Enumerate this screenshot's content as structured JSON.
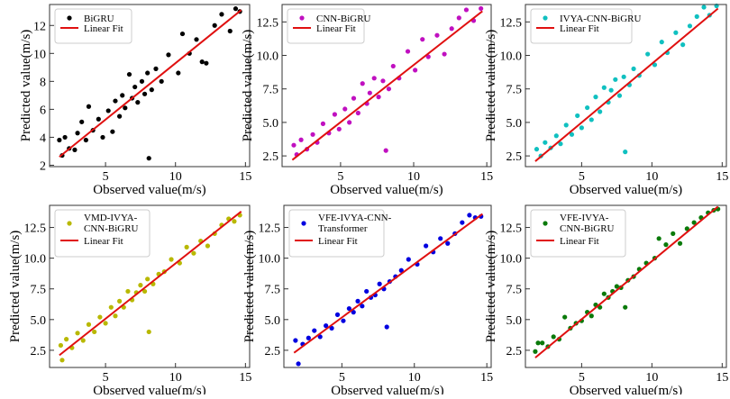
{
  "chart_data": [
    {
      "type": "scatter",
      "legend": [
        "BiGRU",
        "Linear Fit"
      ],
      "legend_position": "top-left",
      "xlabel": "Observed value(m/s)",
      "ylabel": "Predicted value(m/s)",
      "xlim": [
        1,
        15.3
      ],
      "ylim": [
        1.9,
        13.5
      ],
      "xticks": [
        5,
        10,
        15
      ],
      "yticks": [
        2,
        4,
        6,
        8,
        10,
        12
      ],
      "ytick_labels": [
        "2",
        "4",
        "6",
        "8",
        "10",
        "12"
      ],
      "color": "#000000",
      "fit_line": [
        [
          1.7,
          2.6
        ],
        [
          14.7,
          13.1
        ]
      ],
      "points": [
        [
          1.7,
          3.8
        ],
        [
          1.9,
          2.7
        ],
        [
          2.1,
          4.0
        ],
        [
          2.4,
          3.2
        ],
        [
          2.8,
          3.1
        ],
        [
          3.0,
          4.3
        ],
        [
          3.3,
          5.1
        ],
        [
          3.6,
          3.8
        ],
        [
          3.8,
          6.2
        ],
        [
          4.1,
          4.5
        ],
        [
          4.5,
          5.3
        ],
        [
          4.8,
          4.0
        ],
        [
          5.2,
          5.9
        ],
        [
          5.5,
          4.4
        ],
        [
          5.7,
          6.6
        ],
        [
          6.0,
          5.5
        ],
        [
          6.2,
          7.0
        ],
        [
          6.4,
          6.1
        ],
        [
          6.7,
          8.5
        ],
        [
          6.9,
          6.8
        ],
        [
          7.1,
          7.6
        ],
        [
          7.3,
          6.5
        ],
        [
          7.6,
          8.0
        ],
        [
          7.8,
          7.1
        ],
        [
          8.0,
          8.6
        ],
        [
          8.1,
          2.5
        ],
        [
          8.3,
          7.4
        ],
        [
          8.6,
          8.9
        ],
        [
          9.0,
          8.0
        ],
        [
          9.5,
          9.9
        ],
        [
          10.2,
          8.6
        ],
        [
          10.5,
          11.4
        ],
        [
          11.0,
          10.0
        ],
        [
          11.5,
          11.0
        ],
        [
          11.9,
          9.4
        ],
        [
          12.2,
          9.3
        ],
        [
          12.8,
          12.0
        ],
        [
          13.3,
          12.8
        ],
        [
          13.9,
          11.6
        ],
        [
          14.3,
          13.2
        ],
        [
          14.6,
          13.0
        ]
      ]
    },
    {
      "type": "scatter",
      "legend": [
        "CNN-BiGRU",
        "Linear Fit"
      ],
      "legend_position": "top-left",
      "xlabel": "Observed value(m/s)",
      "ylabel": "Predicted value(m/s)",
      "xlim": [
        1,
        15.3
      ],
      "ylim": [
        1.7,
        13.8
      ],
      "xticks": [
        5,
        10,
        15
      ],
      "yticks": [
        2.5,
        5,
        7.5,
        10,
        12.5
      ],
      "ytick_labels": [
        "2.5",
        "5.0",
        "7.5",
        "10.0",
        "12.5"
      ],
      "color": "#c010c0",
      "fit_line": [
        [
          1.7,
          2.2
        ],
        [
          14.7,
          13.3
        ]
      ],
      "points": [
        [
          1.8,
          3.3
        ],
        [
          2.0,
          2.6
        ],
        [
          2.3,
          3.7
        ],
        [
          2.7,
          3.0
        ],
        [
          3.1,
          4.1
        ],
        [
          3.4,
          3.5
        ],
        [
          3.8,
          4.9
        ],
        [
          4.2,
          4.2
        ],
        [
          4.6,
          5.6
        ],
        [
          4.9,
          4.5
        ],
        [
          5.3,
          6.0
        ],
        [
          5.6,
          5.0
        ],
        [
          5.9,
          6.8
        ],
        [
          6.2,
          5.7
        ],
        [
          6.5,
          7.9
        ],
        [
          6.8,
          6.4
        ],
        [
          7.0,
          7.2
        ],
        [
          7.3,
          8.3
        ],
        [
          7.6,
          6.9
        ],
        [
          7.9,
          8.1
        ],
        [
          8.1,
          2.9
        ],
        [
          8.3,
          7.5
        ],
        [
          8.6,
          9.2
        ],
        [
          9.0,
          8.3
        ],
        [
          9.6,
          10.3
        ],
        [
          10.1,
          8.9
        ],
        [
          10.6,
          11.2
        ],
        [
          11.0,
          9.9
        ],
        [
          11.6,
          11.5
        ],
        [
          12.1,
          10.1
        ],
        [
          12.6,
          12.0
        ],
        [
          13.1,
          12.8
        ],
        [
          13.6,
          13.4
        ],
        [
          14.1,
          12.6
        ],
        [
          14.6,
          13.5
        ]
      ]
    },
    {
      "type": "scatter",
      "legend": [
        "IVYA-CNN-BiGRU",
        "Linear Fit"
      ],
      "legend_position": "top-left",
      "xlabel": "Observed value(m/s)",
      "ylabel": "Predicted value(m/s)",
      "xlim": [
        1,
        15.3
      ],
      "ylim": [
        1.7,
        13.8
      ],
      "xticks": [
        5,
        10,
        15
      ],
      "yticks": [
        2.5,
        5,
        7.5,
        10,
        12.5
      ],
      "ytick_labels": [
        "2.5",
        "5.0",
        "7.5",
        "10.0",
        "12.5"
      ],
      "color": "#10c0c0",
      "fit_line": [
        [
          1.7,
          2.1
        ],
        [
          14.7,
          13.5
        ]
      ],
      "points": [
        [
          1.8,
          3.0
        ],
        [
          2.1,
          2.5
        ],
        [
          2.4,
          3.5
        ],
        [
          2.8,
          3.1
        ],
        [
          3.2,
          4.0
        ],
        [
          3.5,
          3.4
        ],
        [
          3.9,
          4.8
        ],
        [
          4.3,
          4.1
        ],
        [
          4.7,
          5.5
        ],
        [
          5.0,
          4.6
        ],
        [
          5.4,
          6.1
        ],
        [
          5.7,
          5.2
        ],
        [
          6.0,
          6.9
        ],
        [
          6.3,
          5.8
        ],
        [
          6.6,
          7.6
        ],
        [
          6.9,
          6.5
        ],
        [
          7.1,
          7.4
        ],
        [
          7.4,
          8.2
        ],
        [
          7.7,
          7.0
        ],
        [
          8.0,
          8.4
        ],
        [
          8.1,
          2.8
        ],
        [
          8.4,
          7.8
        ],
        [
          8.7,
          9.0
        ],
        [
          9.1,
          8.5
        ],
        [
          9.7,
          10.1
        ],
        [
          10.2,
          9.3
        ],
        [
          10.7,
          11.0
        ],
        [
          11.1,
          10.2
        ],
        [
          11.7,
          11.7
        ],
        [
          12.2,
          10.8
        ],
        [
          12.7,
          12.2
        ],
        [
          13.2,
          12.9
        ],
        [
          13.7,
          13.6
        ],
        [
          14.1,
          13.0
        ],
        [
          14.6,
          13.7
        ]
      ]
    },
    {
      "type": "scatter",
      "legend": [
        "VMD-IVYA-CNN-BiGRU",
        "Linear Fit"
      ],
      "legend_lines": [
        "VMD-IVYA-",
        "CNN-BiGRU"
      ],
      "legend_position": "top-left",
      "xlabel": "Observed value(m/s)",
      "ylabel": "Predicted value(m/s)",
      "xlim": [
        1,
        15.3
      ],
      "ylim": [
        1.1,
        14.3
      ],
      "xticks": [
        5,
        10,
        15
      ],
      "yticks": [
        2.5,
        5,
        7.5,
        10,
        12.5
      ],
      "ytick_labels": [
        "2.5",
        "5.0",
        "7.5",
        "10.0",
        "12.5"
      ],
      "color": "#b8b800",
      "fit_line": [
        [
          1.7,
          2.1
        ],
        [
          14.7,
          13.8
        ]
      ],
      "points": [
        [
          1.8,
          2.9
        ],
        [
          1.9,
          1.7
        ],
        [
          2.2,
          3.4
        ],
        [
          2.6,
          2.7
        ],
        [
          3.0,
          3.9
        ],
        [
          3.4,
          3.3
        ],
        [
          3.8,
          4.6
        ],
        [
          4.2,
          4.0
        ],
        [
          4.6,
          5.2
        ],
        [
          5.0,
          4.7
        ],
        [
          5.4,
          6.0
        ],
        [
          5.7,
          5.3
        ],
        [
          6.0,
          6.5
        ],
        [
          6.3,
          6.0
        ],
        [
          6.6,
          7.3
        ],
        [
          6.9,
          6.6
        ],
        [
          7.2,
          7.2
        ],
        [
          7.5,
          7.8
        ],
        [
          7.8,
          7.3
        ],
        [
          8.0,
          8.3
        ],
        [
          8.1,
          4.0
        ],
        [
          8.4,
          7.9
        ],
        [
          8.8,
          8.7
        ],
        [
          9.2,
          8.9
        ],
        [
          9.7,
          9.9
        ],
        [
          10.3,
          9.6
        ],
        [
          10.8,
          10.9
        ],
        [
          11.3,
          10.4
        ],
        [
          11.8,
          11.4
        ],
        [
          12.3,
          11.0
        ],
        [
          12.8,
          12.0
        ],
        [
          13.3,
          12.7
        ],
        [
          13.8,
          13.2
        ],
        [
          14.2,
          13.0
        ],
        [
          14.6,
          13.5
        ]
      ]
    },
    {
      "type": "scatter",
      "legend": [
        "VFE-IVYA-CNN-Transformer",
        "Linear Fit"
      ],
      "legend_lines": [
        "VFE-IVYA-CNN-",
        "Transformer"
      ],
      "legend_position": "top-left",
      "xlabel": "Observed value(m/s)",
      "ylabel": "Predicted value(m/s)",
      "xlim": [
        1,
        15.3
      ],
      "ylim": [
        1.1,
        14.3
      ],
      "xticks": [
        5,
        10,
        15
      ],
      "yticks": [
        2.5,
        5,
        7.5,
        10,
        12.5
      ],
      "ytick_labels": [
        "2.5",
        "5.0",
        "7.5",
        "10.0",
        "12.5"
      ],
      "color": "#0000e0",
      "fit_line": [
        [
          1.7,
          2.3
        ],
        [
          14.7,
          13.6
        ]
      ],
      "points": [
        [
          1.8,
          3.3
        ],
        [
          2.0,
          1.4
        ],
        [
          2.3,
          3.0
        ],
        [
          2.7,
          3.5
        ],
        [
          3.1,
          4.1
        ],
        [
          3.5,
          3.6
        ],
        [
          3.9,
          4.5
        ],
        [
          4.3,
          4.3
        ],
        [
          4.7,
          5.4
        ],
        [
          5.1,
          4.9
        ],
        [
          5.5,
          5.9
        ],
        [
          5.8,
          5.6
        ],
        [
          6.1,
          6.5
        ],
        [
          6.4,
          6.1
        ],
        [
          6.7,
          7.3
        ],
        [
          7.0,
          6.8
        ],
        [
          7.3,
          7.0
        ],
        [
          7.6,
          7.9
        ],
        [
          7.9,
          7.5
        ],
        [
          8.1,
          4.4
        ],
        [
          8.3,
          8.1
        ],
        [
          8.7,
          8.5
        ],
        [
          9.1,
          9.0
        ],
        [
          9.6,
          9.9
        ],
        [
          10.2,
          9.5
        ],
        [
          10.8,
          11.0
        ],
        [
          11.3,
          10.5
        ],
        [
          11.8,
          11.6
        ],
        [
          12.3,
          11.2
        ],
        [
          12.8,
          12.0
        ],
        [
          13.3,
          12.9
        ],
        [
          13.8,
          13.5
        ],
        [
          14.2,
          13.3
        ],
        [
          14.6,
          13.4
        ]
      ]
    },
    {
      "type": "scatter",
      "legend": [
        "VFE-IVYA-CNN-BiGRU",
        "Linear Fit"
      ],
      "legend_lines": [
        "VFE-IVYA-",
        "CNN-BiGRU"
      ],
      "legend_position": "top-left",
      "xlabel": "Observed value(m/s)",
      "ylabel": "Predicted value(m/s)",
      "xlim": [
        1,
        15.3
      ],
      "ylim": [
        1.1,
        14.3
      ],
      "xticks": [
        5,
        10,
        15
      ],
      "yticks": [
        2.5,
        5,
        7.5,
        10,
        12.5
      ],
      "ytick_labels": [
        "2.5",
        "5.0",
        "7.5",
        "10.0",
        "12.5"
      ],
      "color": "#0a7a0a",
      "fit_line": [
        [
          1.7,
          1.9
        ],
        [
          14.7,
          14.2
        ]
      ],
      "points": [
        [
          1.7,
          2.4
        ],
        [
          1.9,
          3.1
        ],
        [
          2.2,
          3.1
        ],
        [
          2.6,
          2.8
        ],
        [
          3.0,
          3.6
        ],
        [
          3.4,
          3.4
        ],
        [
          3.8,
          5.2
        ],
        [
          4.2,
          4.3
        ],
        [
          4.6,
          4.7
        ],
        [
          5.0,
          4.9
        ],
        [
          5.4,
          5.6
        ],
        [
          5.7,
          5.3
        ],
        [
          6.0,
          6.2
        ],
        [
          6.3,
          6.0
        ],
        [
          6.6,
          7.1
        ],
        [
          6.9,
          6.8
        ],
        [
          7.2,
          7.3
        ],
        [
          7.5,
          7.7
        ],
        [
          7.8,
          7.6
        ],
        [
          8.1,
          6.0
        ],
        [
          8.3,
          8.2
        ],
        [
          8.7,
          8.5
        ],
        [
          9.1,
          9.1
        ],
        [
          9.6,
          9.6
        ],
        [
          10.2,
          10.0
        ],
        [
          10.5,
          11.6
        ],
        [
          11.0,
          11.1
        ],
        [
          11.5,
          12.0
        ],
        [
          12.0,
          11.2
        ],
        [
          12.5,
          12.4
        ],
        [
          13.0,
          12.9
        ],
        [
          13.5,
          13.3
        ],
        [
          14.0,
          13.7
        ],
        [
          14.4,
          13.9
        ],
        [
          14.7,
          14.0
        ]
      ]
    }
  ]
}
